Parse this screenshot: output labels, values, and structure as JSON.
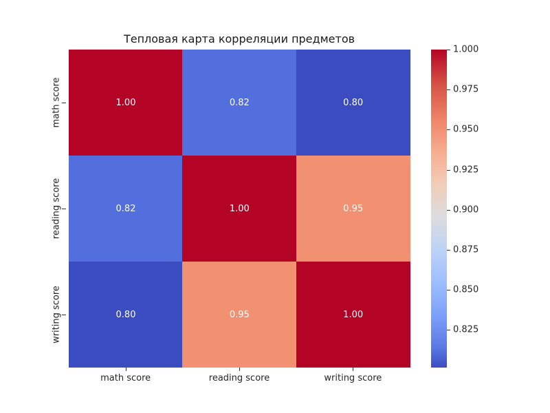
{
  "chart_data": {
    "type": "heatmap",
    "title": "Тепловая карта корреляции предметов",
    "x_labels": [
      "math score",
      "reading score",
      "writing score"
    ],
    "y_labels": [
      "math score",
      "reading score",
      "writing score"
    ],
    "values": [
      [
        1.0,
        0.82,
        0.8
      ],
      [
        0.82,
        1.0,
        0.95
      ],
      [
        0.8,
        0.95,
        1.0
      ]
    ],
    "annotations": [
      [
        "1.00",
        "0.82",
        "0.80"
      ],
      [
        "0.82",
        "1.00",
        "0.95"
      ],
      [
        "0.80",
        "0.95",
        "1.00"
      ]
    ],
    "cell_colors": [
      [
        "#b40426",
        "#536edd",
        "#3b4cc0"
      ],
      [
        "#536edd",
        "#b40426",
        "#f29072"
      ],
      [
        "#3b4cc0",
        "#f29072",
        "#b40426"
      ]
    ],
    "colormap": "coolwarm",
    "colorbar": {
      "range": [
        0.8015,
        1.0
      ],
      "ticks": [
        "1.000",
        "0.975",
        "0.950",
        "0.925",
        "0.900",
        "0.875",
        "0.850",
        "0.825"
      ],
      "tick_values": [
        1.0,
        0.975,
        0.95,
        0.925,
        0.9,
        0.875,
        0.85,
        0.825
      ]
    }
  }
}
